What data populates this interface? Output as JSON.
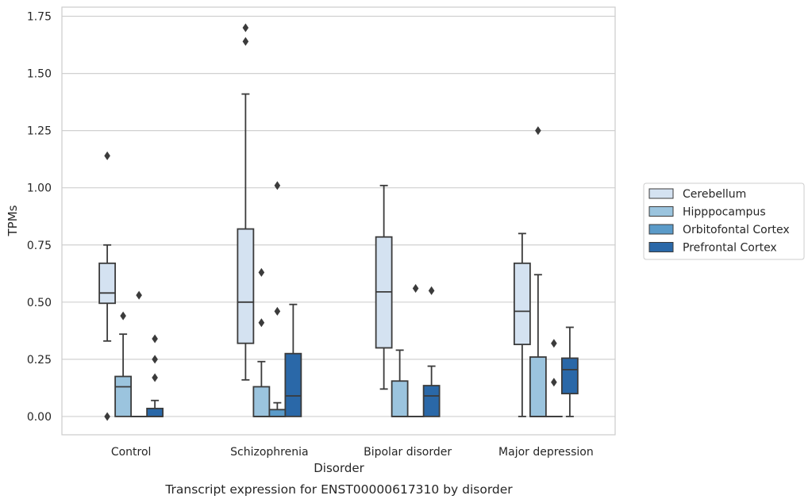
{
  "chart_data": {
    "type": "box",
    "xlabel": "Disorder",
    "ylabel": "TPMs",
    "caption": "Transcript expression for ENST00000617310 by disorder",
    "ylim": [
      -0.08,
      1.79
    ],
    "yticks": [
      "0.00",
      "0.25",
      "0.50",
      "0.75",
      "1.00",
      "1.25",
      "1.50",
      "1.75"
    ],
    "grid": "horizontal",
    "legend_position": "right",
    "categories": [
      "Control",
      "Schizophrenia",
      "Bipolar disorder",
      "Major depression"
    ],
    "series": [
      {
        "name": "Cerebellum",
        "color": "#d4e2f1",
        "boxes": [
          {
            "whisker_low": 0.33,
            "q1": 0.495,
            "median": 0.54,
            "q3": 0.67,
            "whisker_high": 0.75,
            "outliers": [
              0.0,
              1.14
            ]
          },
          {
            "whisker_low": 0.16,
            "q1": 0.32,
            "median": 0.5,
            "q3": 0.82,
            "whisker_high": 1.41,
            "outliers": [
              1.64,
              1.7
            ]
          },
          {
            "whisker_low": 0.12,
            "q1": 0.3,
            "median": 0.545,
            "q3": 0.785,
            "whisker_high": 1.01,
            "outliers": []
          },
          {
            "whisker_low": 0.0,
            "q1": 0.315,
            "median": 0.46,
            "q3": 0.67,
            "whisker_high": 0.8,
            "outliers": []
          }
        ]
      },
      {
        "name": "Hipppocampus",
        "color": "#9bc4de",
        "boxes": [
          {
            "whisker_low": 0.0,
            "q1": 0.0,
            "median": 0.13,
            "q3": 0.175,
            "whisker_high": 0.36,
            "outliers": [
              0.44
            ]
          },
          {
            "whisker_low": 0.0,
            "q1": 0.0,
            "median": 0.0,
            "q3": 0.13,
            "whisker_high": 0.24,
            "outliers": [
              0.41,
              0.63
            ]
          },
          {
            "whisker_low": 0.0,
            "q1": 0.0,
            "median": 0.0,
            "q3": 0.155,
            "whisker_high": 0.29,
            "outliers": []
          },
          {
            "whisker_low": 0.0,
            "q1": 0.0,
            "median": 0.0,
            "q3": 0.26,
            "whisker_high": 0.62,
            "outliers": [
              1.25
            ]
          }
        ]
      },
      {
        "name": "Orbitofontal Cortex",
        "color": "#5b9bc9",
        "boxes": [
          {
            "whisker_low": 0.0,
            "q1": 0.0,
            "median": 0.0,
            "q3": 0.0,
            "whisker_high": 0.0,
            "outliers": [
              0.53
            ]
          },
          {
            "whisker_low": 0.0,
            "q1": 0.0,
            "median": 0.0,
            "q3": 0.03,
            "whisker_high": 0.06,
            "outliers": [
              0.46,
              1.01
            ]
          },
          {
            "whisker_low": 0.0,
            "q1": 0.0,
            "median": 0.0,
            "q3": 0.0,
            "whisker_high": 0.0,
            "outliers": [
              0.56
            ]
          },
          {
            "whisker_low": 0.0,
            "q1": 0.0,
            "median": 0.0,
            "q3": 0.0,
            "whisker_high": 0.0,
            "outliers": [
              0.15,
              0.32
            ]
          }
        ]
      },
      {
        "name": "Prefrontal Cortex",
        "color": "#2a68a8",
        "boxes": [
          {
            "whisker_low": 0.0,
            "q1": 0.0,
            "median": 0.0,
            "q3": 0.035,
            "whisker_high": 0.07,
            "outliers": [
              0.17,
              0.25,
              0.34
            ]
          },
          {
            "whisker_low": 0.0,
            "q1": 0.0,
            "median": 0.09,
            "q3": 0.275,
            "whisker_high": 0.49,
            "outliers": []
          },
          {
            "whisker_low": 0.0,
            "q1": 0.0,
            "median": 0.09,
            "q3": 0.135,
            "whisker_high": 0.22,
            "outliers": [
              0.55
            ]
          },
          {
            "whisker_low": 0.0,
            "q1": 0.1,
            "median": 0.205,
            "q3": 0.255,
            "whisker_high": 0.39,
            "outliers": []
          }
        ]
      }
    ]
  }
}
